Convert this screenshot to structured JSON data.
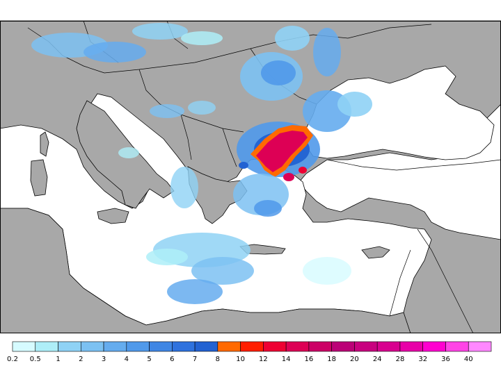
{
  "colors": {
    "land": "#a8a8a8",
    "sea": "#ffffff",
    "border": "#000000"
  },
  "legend": {
    "labels": [
      "0.2",
      "0.5",
      "1",
      "2",
      "3",
      "4",
      "5",
      "6",
      "7",
      "8",
      "10",
      "12",
      "14",
      "16",
      "18",
      "20",
      "24",
      "28",
      "32",
      "36",
      "40"
    ],
    "colors": [
      "#d6fbff",
      "#aeeef8",
      "#8fd2f5",
      "#7cc1f2",
      "#65acee",
      "#5099ea",
      "#3f86e4",
      "#2e72de",
      "#2262d2",
      "#ff6a00",
      "#ff1e00",
      "#ee0033",
      "#dd0055",
      "#cc0066",
      "#bb0077",
      "#c8007f",
      "#d8008f",
      "#e800a8",
      "#ff00d0",
      "#ff44e6",
      "#ff88ff"
    ]
  },
  "precip_areas": [
    {
      "name": "north-italy-alps",
      "level": 3
    },
    {
      "name": "hungary-romania",
      "level": 4
    },
    {
      "name": "western-black-sea",
      "level": 5
    },
    {
      "name": "thrace-marmara",
      "level": 16
    },
    {
      "name": "aegean",
      "level": 3
    },
    {
      "name": "ionian-libya",
      "level": 3
    }
  ]
}
